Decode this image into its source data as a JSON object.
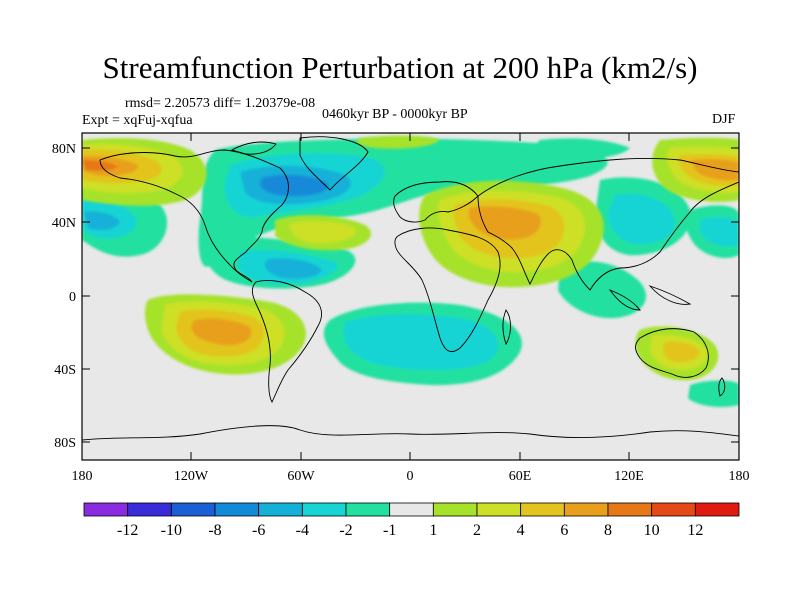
{
  "title": "Streamfunction Perturbation at 200 hPa (km2/s)",
  "stats": "rmsd= 2.20573 diff= 1.20379e-08",
  "experiment": "Expt = xqFuj-xqfua",
  "period": "0460kyr BP - 0000kyr BP",
  "season": "DJF",
  "map": {
    "lat_ticks": [
      "80N",
      "40N",
      "0",
      "40S",
      "80S"
    ],
    "lon_ticks": [
      "180",
      "120W",
      "60W",
      "0",
      "60E",
      "120E",
      "180"
    ]
  },
  "colorbar": {
    "colors": [
      "#8a2be2",
      "#3a2cd8",
      "#1a5fd6",
      "#138ad8",
      "#14b0d8",
      "#18d4d4",
      "#22e0a0",
      "#e8e8e8",
      "#a6e22a",
      "#cde026",
      "#e3c41e",
      "#e8a01c",
      "#e67818",
      "#e44a16",
      "#e01a10"
    ],
    "labels": [
      "-12",
      "-10",
      "-8",
      "-6",
      "-4",
      "-2",
      "-1",
      "1",
      "2",
      "4",
      "6",
      "8",
      "10",
      "12"
    ]
  }
}
